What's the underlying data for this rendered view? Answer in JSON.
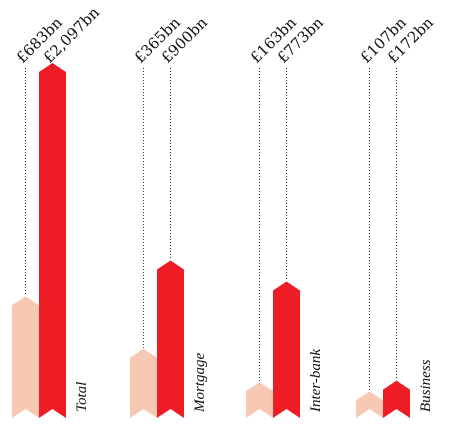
{
  "chart_data": {
    "type": "bar",
    "categories": [
      "Total",
      "Mortgage",
      "Inter-bank",
      "Business"
    ],
    "series": [
      {
        "values": [
          683,
          365,
          163,
          107
        ],
        "labels": [
          "£683bn",
          "£365bn",
          "£163bn",
          "£107bn"
        ]
      },
      {
        "values": [
          2097,
          900,
          773,
          172
        ],
        "labels": [
          "£2,097bn",
          "£900bn",
          "£773bn",
          "£172bn"
        ]
      }
    ],
    "unit": "£bn",
    "ylim": [
      0,
      2097
    ],
    "colors": [
      "#f7c8b4",
      "#ee1c25"
    ],
    "grid": false,
    "legend": "none"
  }
}
